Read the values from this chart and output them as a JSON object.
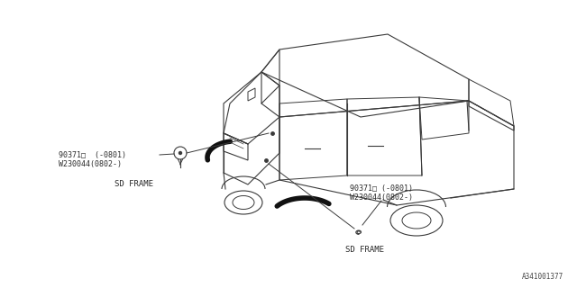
{
  "background_color": "#ffffff",
  "diagram_id": "A341001377",
  "label1_line1": "90371□  (-0801)",
  "label1_line2": "W230044(0802-)",
  "label1_sub": "SD FRAME",
  "label2_line1": "90371□ (-0801)",
  "label2_line2": "W230044(0802-)",
  "label2_sub": "SD FRAME",
  "text_color": "#2a2a2a",
  "line_color": "#2a2a2a",
  "font_size": 6.0,
  "sub_font_size": 6.5,
  "car_lw": 0.8,
  "thick_arc_lw": 4.0
}
